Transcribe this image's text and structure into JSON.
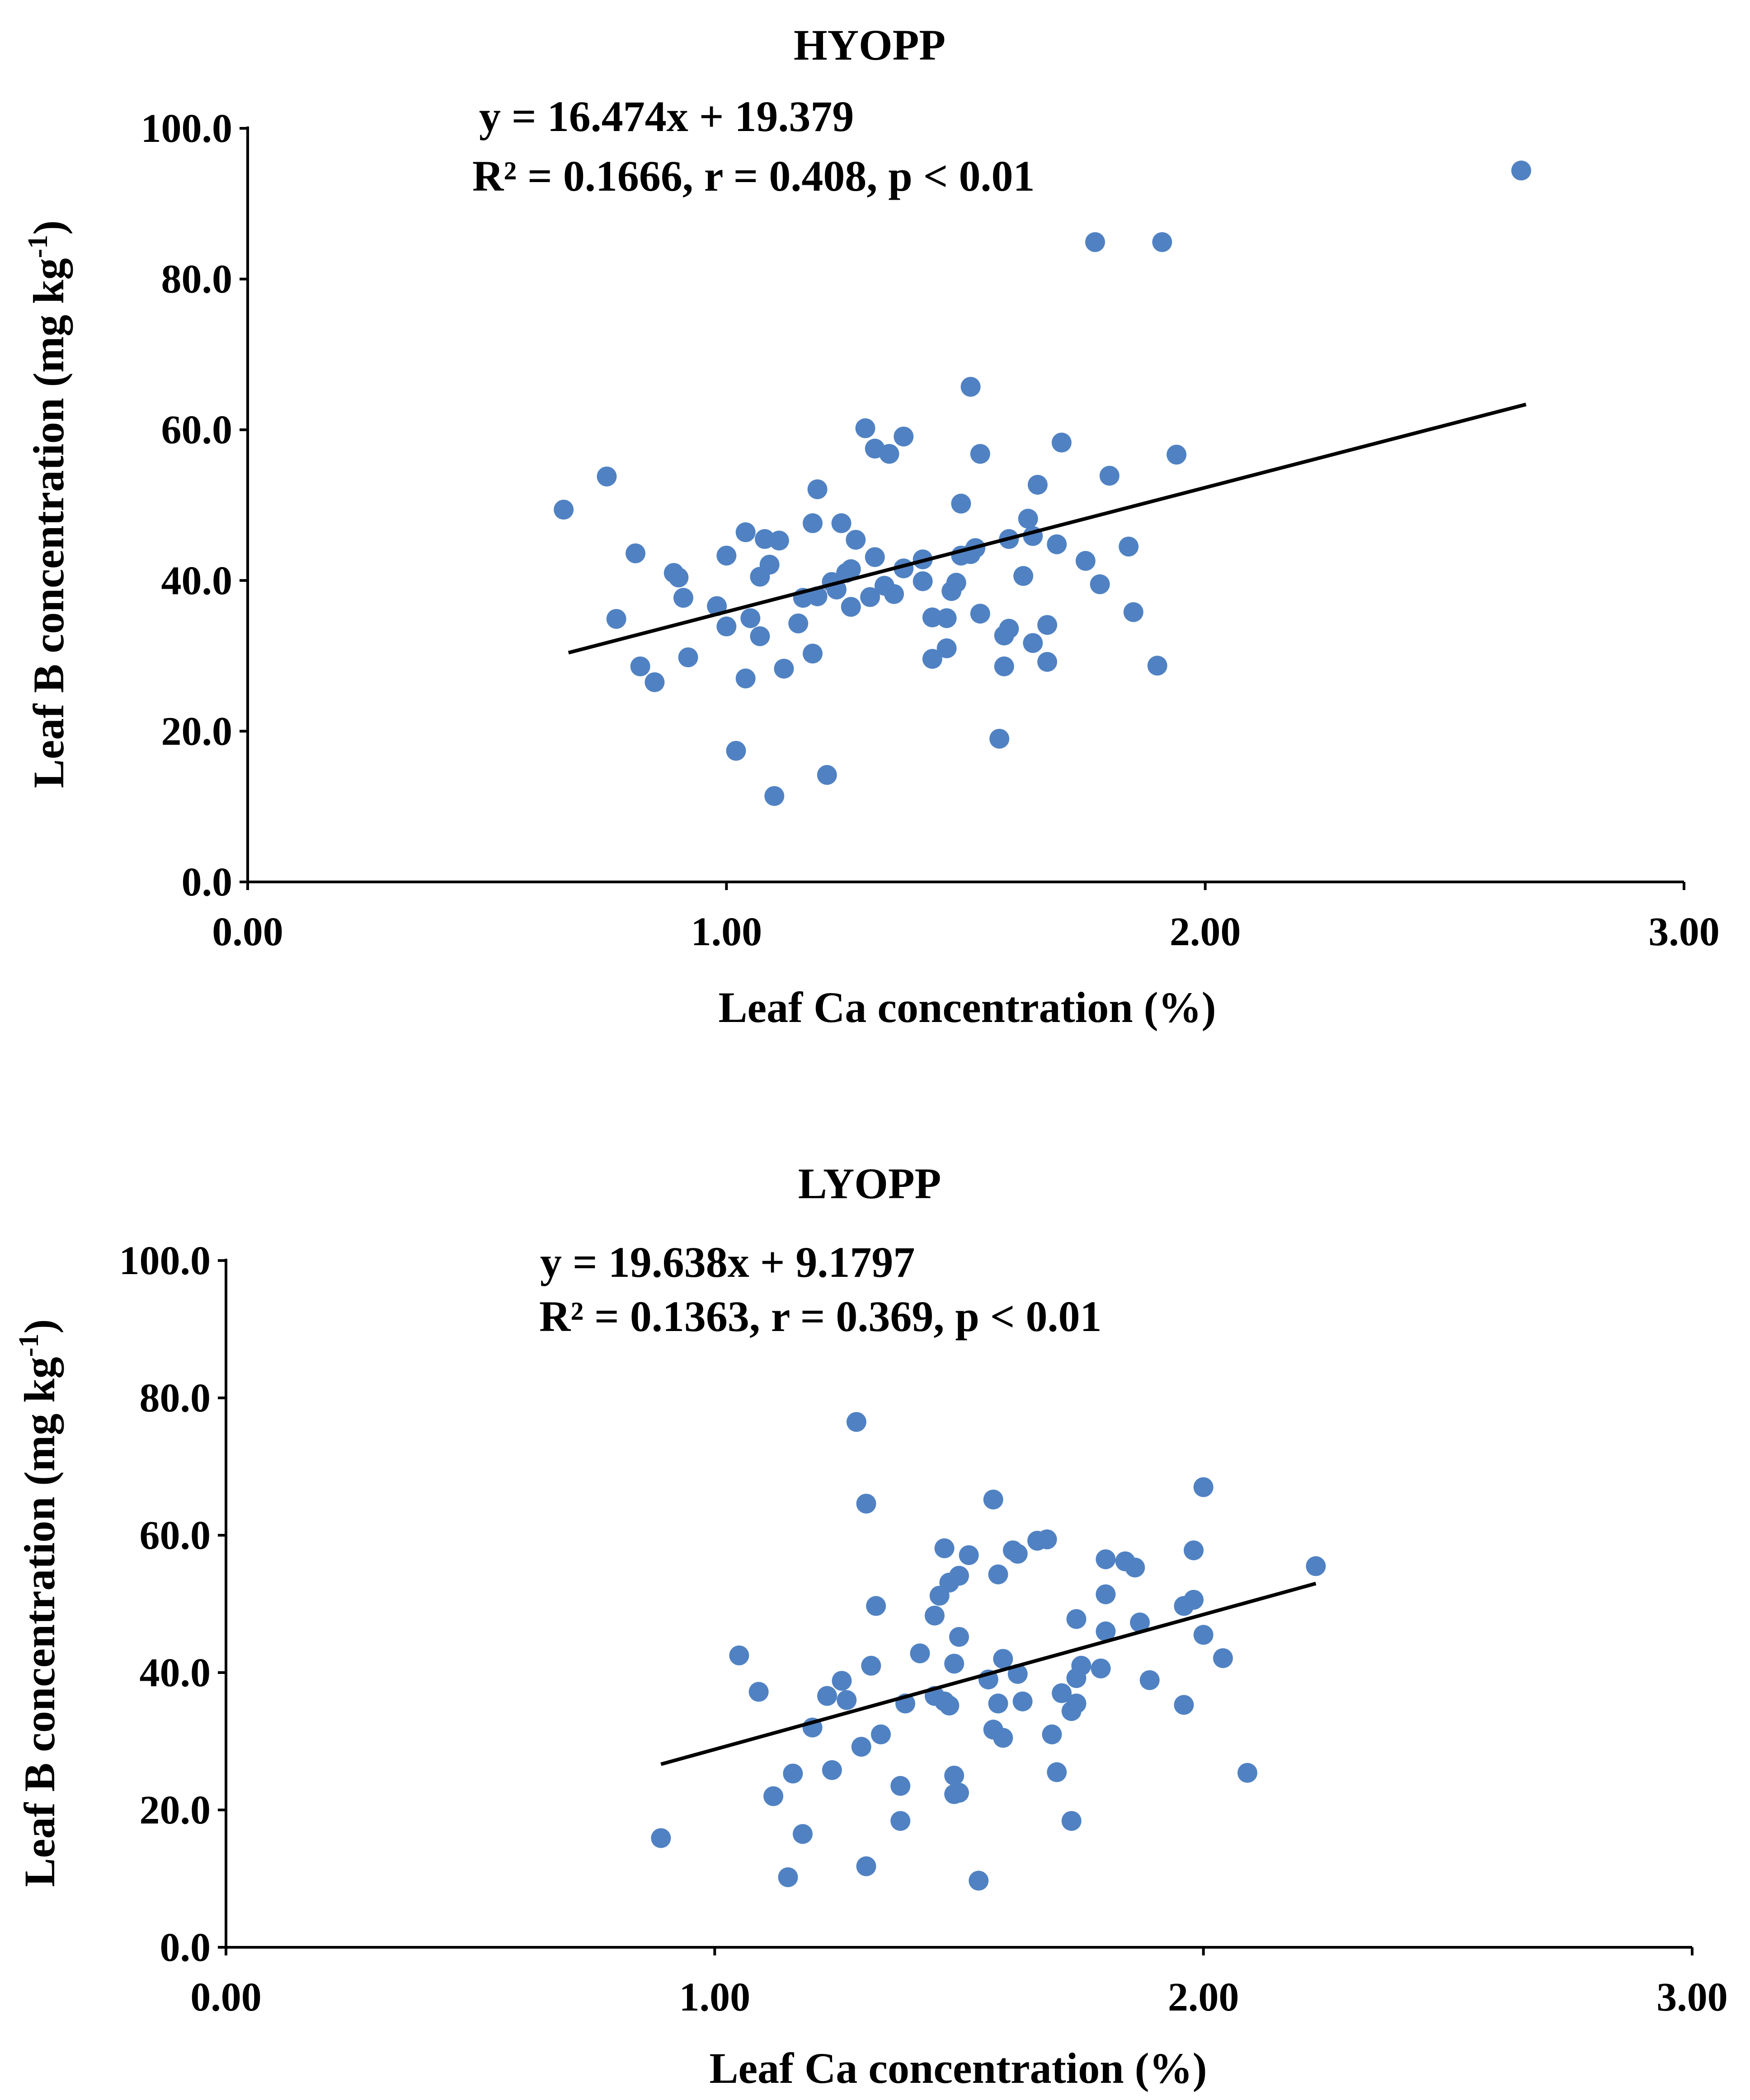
{
  "colors": {
    "point": "#5082c3",
    "axis": "#000000",
    "trendline": "#000000"
  },
  "chart_data": [
    {
      "type": "scatter",
      "title": "HYOPP",
      "equation": "y = 16.474x + 19.379",
      "stats": "R² = 0.1666, r = 0.408, p < 0.01",
      "xlabel": "Leaf Ca concentration  (%)",
      "ylabel": "Leaf B concentration  (mg kg",
      "ylabel_sup": "-1",
      "ylabel_end": ")",
      "xlim": [
        0,
        3
      ],
      "ylim": [
        0,
        100
      ],
      "x_ticks": [
        0,
        1,
        2,
        3
      ],
      "x_tick_labels": [
        "0.00",
        "1.00",
        "2.00",
        "3.00"
      ],
      "y_ticks": [
        0,
        20,
        40,
        60,
        80,
        100
      ],
      "y_tick_labels": [
        "0.0",
        "20.0",
        "40.0",
        "60.0",
        "80.0",
        "100.0"
      ],
      "trendline": {
        "slope": 16.474,
        "intercept": 19.379,
        "x_range": [
          0.67,
          2.67
        ]
      },
      "points": [
        [
          0.66,
          49.4
        ],
        [
          0.75,
          53.8
        ],
        [
          0.77,
          34.9
        ],
        [
          0.81,
          43.6
        ],
        [
          0.82,
          28.6
        ],
        [
          0.85,
          26.5
        ],
        [
          0.89,
          41.0
        ],
        [
          0.9,
          40.4
        ],
        [
          0.91,
          37.7
        ],
        [
          0.92,
          29.8
        ],
        [
          0.98,
          36.6
        ],
        [
          1.0,
          33.9
        ],
        [
          1.0,
          43.3
        ],
        [
          1.02,
          17.4
        ],
        [
          1.04,
          27.0
        ],
        [
          1.04,
          46.4
        ],
        [
          1.05,
          35.0
        ],
        [
          1.07,
          40.5
        ],
        [
          1.07,
          32.6
        ],
        [
          1.08,
          45.5
        ],
        [
          1.09,
          42.1
        ],
        [
          1.1,
          11.4
        ],
        [
          1.11,
          45.3
        ],
        [
          1.12,
          28.3
        ],
        [
          1.15,
          34.3
        ],
        [
          1.16,
          37.7
        ],
        [
          1.18,
          47.6
        ],
        [
          1.18,
          30.3
        ],
        [
          1.19,
          37.9
        ],
        [
          1.19,
          52.1
        ],
        [
          1.21,
          14.2
        ],
        [
          1.22,
          39.8
        ],
        [
          1.23,
          38.8
        ],
        [
          1.24,
          47.6
        ],
        [
          1.25,
          41.0
        ],
        [
          1.26,
          36.5
        ],
        [
          1.26,
          41.5
        ],
        [
          1.27,
          45.4
        ],
        [
          1.29,
          60.2
        ],
        [
          1.3,
          37.8
        ],
        [
          1.31,
          43.1
        ],
        [
          1.31,
          57.5
        ],
        [
          1.33,
          39.3
        ],
        [
          1.34,
          56.8
        ],
        [
          1.35,
          38.2
        ],
        [
          1.37,
          59.1
        ],
        [
          1.37,
          41.6
        ],
        [
          1.41,
          42.8
        ],
        [
          1.41,
          39.9
        ],
        [
          1.43,
          29.6
        ],
        [
          1.43,
          35.1
        ],
        [
          1.46,
          35.0
        ],
        [
          1.46,
          31.0
        ],
        [
          1.47,
          38.6
        ],
        [
          1.48,
          39.7
        ],
        [
          1.49,
          43.3
        ],
        [
          1.49,
          50.2
        ],
        [
          1.51,
          65.7
        ],
        [
          1.51,
          43.5
        ],
        [
          1.52,
          44.3
        ],
        [
          1.53,
          35.6
        ],
        [
          1.53,
          56.8
        ],
        [
          1.57,
          19.0
        ],
        [
          1.58,
          32.7
        ],
        [
          1.58,
          28.6
        ],
        [
          1.59,
          45.5
        ],
        [
          1.59,
          33.6
        ],
        [
          1.62,
          40.6
        ],
        [
          1.63,
          48.2
        ],
        [
          1.64,
          45.9
        ],
        [
          1.64,
          31.7
        ],
        [
          1.65,
          52.7
        ],
        [
          1.67,
          34.1
        ],
        [
          1.67,
          29.2
        ],
        [
          1.69,
          44.8
        ],
        [
          1.7,
          58.3
        ],
        [
          1.75,
          42.6
        ],
        [
          1.77,
          84.9
        ],
        [
          1.78,
          39.5
        ],
        [
          1.8,
          53.9
        ],
        [
          1.84,
          44.5
        ],
        [
          1.85,
          35.8
        ],
        [
          1.9,
          28.7
        ],
        [
          1.91,
          84.9
        ],
        [
          1.94,
          56.7
        ],
        [
          2.66,
          94.4
        ]
      ]
    },
    {
      "type": "scatter",
      "title": "LYOPP",
      "equation": "y = 19.638x + 9.1797",
      "stats": "R² = 0.1363, r = 0.369, p < 0.01",
      "xlabel": "Leaf Ca concentration  (%)",
      "ylabel": "Leaf B concentration  (mg kg",
      "ylabel_sup": "-1",
      "ylabel_end": ")",
      "xlim": [
        0,
        3
      ],
      "ylim": [
        0,
        100
      ],
      "x_ticks": [
        0,
        1,
        2,
        3
      ],
      "x_tick_labels": [
        "0.00",
        "1.00",
        "2.00",
        "3.00"
      ],
      "y_ticks": [
        0,
        20,
        40,
        60,
        80,
        100
      ],
      "y_tick_labels": [
        "0.0",
        "20.0",
        "40.0",
        "60.0",
        "80.0",
        "100.0"
      ],
      "trendline": {
        "slope": 19.638,
        "intercept": 9.1797,
        "x_range": [
          0.89,
          2.23
        ]
      },
      "points": [
        [
          0.89,
          15.9
        ],
        [
          1.05,
          42.5
        ],
        [
          1.09,
          37.2
        ],
        [
          1.12,
          22.0
        ],
        [
          1.15,
          10.2
        ],
        [
          1.16,
          25.3
        ],
        [
          1.18,
          16.5
        ],
        [
          1.2,
          32.0
        ],
        [
          1.23,
          36.6
        ],
        [
          1.24,
          25.8
        ],
        [
          1.26,
          38.8
        ],
        [
          1.27,
          36.0
        ],
        [
          1.29,
          76.5
        ],
        [
          1.3,
          29.2
        ],
        [
          1.31,
          64.6
        ],
        [
          1.31,
          11.8
        ],
        [
          1.32,
          41.0
        ],
        [
          1.33,
          49.7
        ],
        [
          1.34,
          31.0
        ],
        [
          1.38,
          18.4
        ],
        [
          1.38,
          23.5
        ],
        [
          1.39,
          35.5
        ],
        [
          1.42,
          42.8
        ],
        [
          1.45,
          48.3
        ],
        [
          1.45,
          36.6
        ],
        [
          1.46,
          51.2
        ],
        [
          1.47,
          35.8
        ],
        [
          1.47,
          58.1
        ],
        [
          1.48,
          53.1
        ],
        [
          1.48,
          35.2
        ],
        [
          1.49,
          41.3
        ],
        [
          1.49,
          25.0
        ],
        [
          1.49,
          22.3
        ],
        [
          1.5,
          54.1
        ],
        [
          1.5,
          22.5
        ],
        [
          1.5,
          45.2
        ],
        [
          1.52,
          57.1
        ],
        [
          1.54,
          9.7
        ],
        [
          1.56,
          39.0
        ],
        [
          1.57,
          65.2
        ],
        [
          1.57,
          31.7
        ],
        [
          1.58,
          35.5
        ],
        [
          1.58,
          54.3
        ],
        [
          1.59,
          42.0
        ],
        [
          1.59,
          30.5
        ],
        [
          1.61,
          57.8
        ],
        [
          1.62,
          39.8
        ],
        [
          1.62,
          57.3
        ],
        [
          1.63,
          35.8
        ],
        [
          1.66,
          59.2
        ],
        [
          1.68,
          59.4
        ],
        [
          1.69,
          31.0
        ],
        [
          1.7,
          25.5
        ],
        [
          1.71,
          37.0
        ],
        [
          1.73,
          18.4
        ],
        [
          1.73,
          34.4
        ],
        [
          1.74,
          35.5
        ],
        [
          1.74,
          47.8
        ],
        [
          1.74,
          39.2
        ],
        [
          1.75,
          41.0
        ],
        [
          1.79,
          40.6
        ],
        [
          1.8,
          56.5
        ],
        [
          1.8,
          51.4
        ],
        [
          1.8,
          46.0
        ],
        [
          1.84,
          56.2
        ],
        [
          1.86,
          55.3
        ],
        [
          1.87,
          47.3
        ],
        [
          1.89,
          38.9
        ],
        [
          1.96,
          35.3
        ],
        [
          1.96,
          49.7
        ],
        [
          1.98,
          50.6
        ],
        [
          1.98,
          57.8
        ],
        [
          2.0,
          45.5
        ],
        [
          2.0,
          67.0
        ],
        [
          2.04,
          42.1
        ],
        [
          2.09,
          25.4
        ],
        [
          2.23,
          55.5
        ]
      ]
    }
  ]
}
